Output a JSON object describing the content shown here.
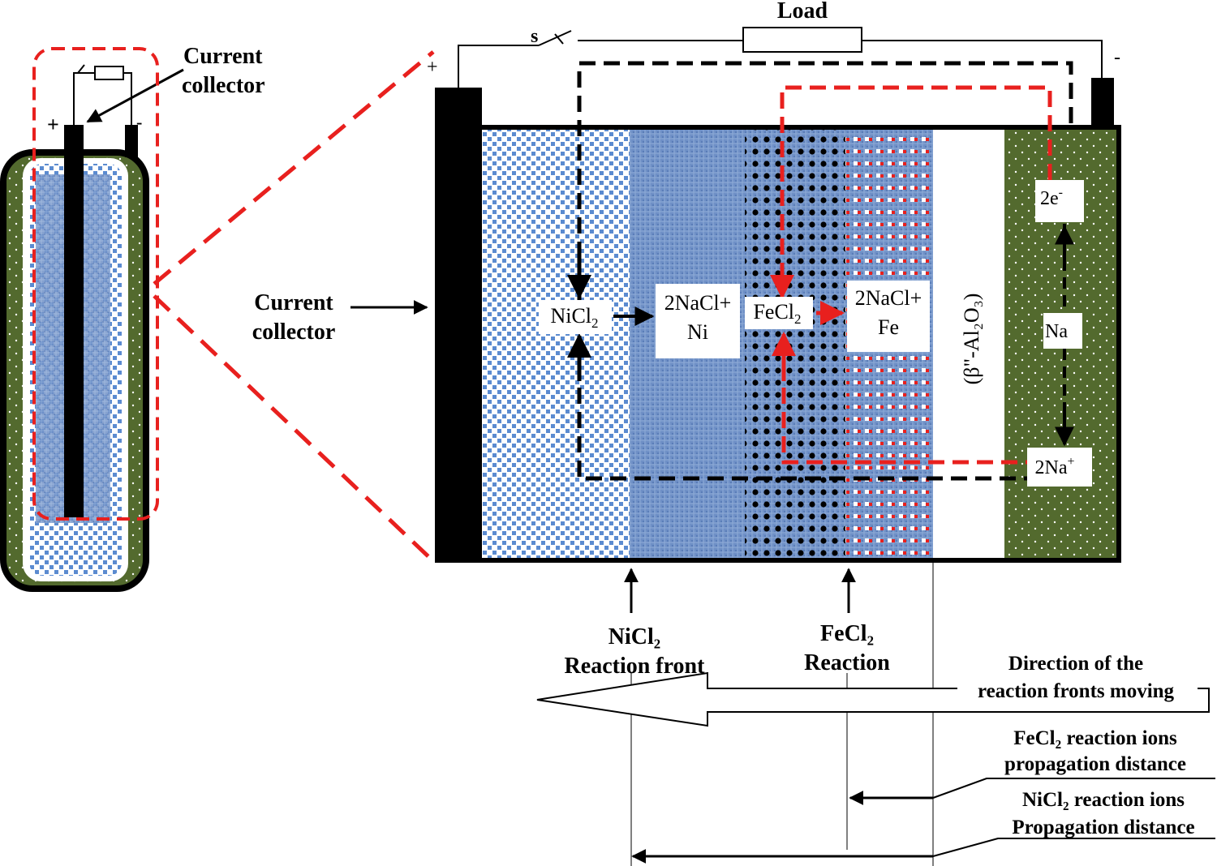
{
  "small_cell": {
    "label_line1": "Current",
    "label_line2": "collector",
    "plus": "+",
    "minus": "-"
  },
  "main_cell": {
    "load": "Load",
    "switch": "s",
    "plus": "+",
    "minus": "-",
    "current_collector_line1": "Current",
    "current_collector_line2": "collector",
    "nicl2": "NiCl",
    "nicl2_sub": "2",
    "nacl_ni_line1": "2NaCl+",
    "nacl_ni_line2": "Ni",
    "fecl2": "FeCl",
    "fecl2_sub": "2",
    "nacl_fe_line1": "2NaCl+",
    "nacl_fe_line2": "Fe",
    "electrons": "2e",
    "electrons_sup": "-",
    "sodium": "Na",
    "sodium_ions": "2Na",
    "sodium_ions_sup": "+",
    "electrolyte": "(β\"-Al₂O₃)"
  },
  "bottom": {
    "nicl2_front_line1": "NiCl₂",
    "nicl2_front_line2": "Reaction front",
    "fecl2_front_line1": "FeCl₂",
    "fecl2_front_line2": "Reaction",
    "direction_line1": "Direction of the",
    "direction_line2": "reaction fronts moving",
    "fecl2_ions_line1": "FeCl₂ reaction ions",
    "fecl2_ions_line2": "propagation distance",
    "nicl2_ions_line1": "NiCl₂ reaction ions",
    "nicl2_ions_line2": "Propagation distance"
  },
  "colors": {
    "red_dash": "#e8201e",
    "black_dash": "#000000",
    "anode_green": "#536a2e",
    "blue_dark": "#6e8fc3",
    "blue_light": "#5b8bd0"
  }
}
